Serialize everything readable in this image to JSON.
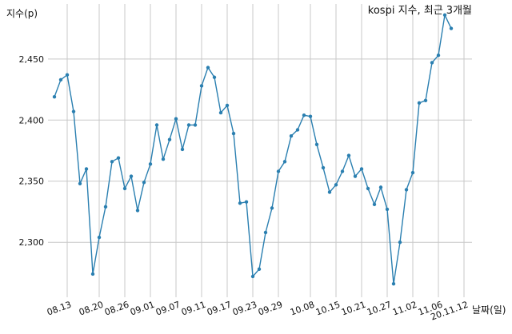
{
  "chart_data": {
    "type": "line",
    "title": "kospi 지수, 최근 3개월",
    "ylabel": "지수(p)",
    "xlabel": "날짜(일)",
    "ylim": [
      2255,
      2495
    ],
    "yticks": [
      2300,
      2350,
      2400,
      2450
    ],
    "ytick_labels": [
      "2,300",
      "2,350",
      "2,400",
      "2,450"
    ],
    "grid": true,
    "x_tick_labels": [
      "08.13",
      "08.20",
      "08.26",
      "09.01",
      "09.07",
      "09.11",
      "09.17",
      "09.23",
      "09.29",
      "10.08",
      "10.15",
      "10.21",
      "10.27",
      "11.02",
      "11.06",
      "20.11.12"
    ],
    "x_tick_indices": [
      2,
      7,
      11,
      15,
      19,
      23,
      27,
      31,
      35,
      40,
      44,
      48,
      52,
      56,
      60,
      64
    ],
    "series": [
      {
        "values": [
          2419,
          2433,
          2437,
          2407,
          2348,
          2360,
          2274,
          2304,
          2329,
          2366,
          2369,
          2344,
          2354,
          2326,
          2349,
          2364,
          2396,
          2368,
          2384,
          2401,
          2376,
          2396,
          2396,
          2428,
          2443,
          2435,
          2406,
          2412,
          2389,
          2332,
          2333,
          2272,
          2278,
          2308,
          2328,
          2358,
          2366,
          2387,
          2392,
          2404,
          2403,
          2380,
          2361,
          2341,
          2347,
          2358,
          2371,
          2354,
          2360,
          2344,
          2331,
          2345,
          2327,
          2266,
          2300,
          2343,
          2357,
          2414,
          2416,
          2447,
          2453,
          2486,
          2475
        ],
        "color": "#2a7fb0"
      }
    ]
  }
}
